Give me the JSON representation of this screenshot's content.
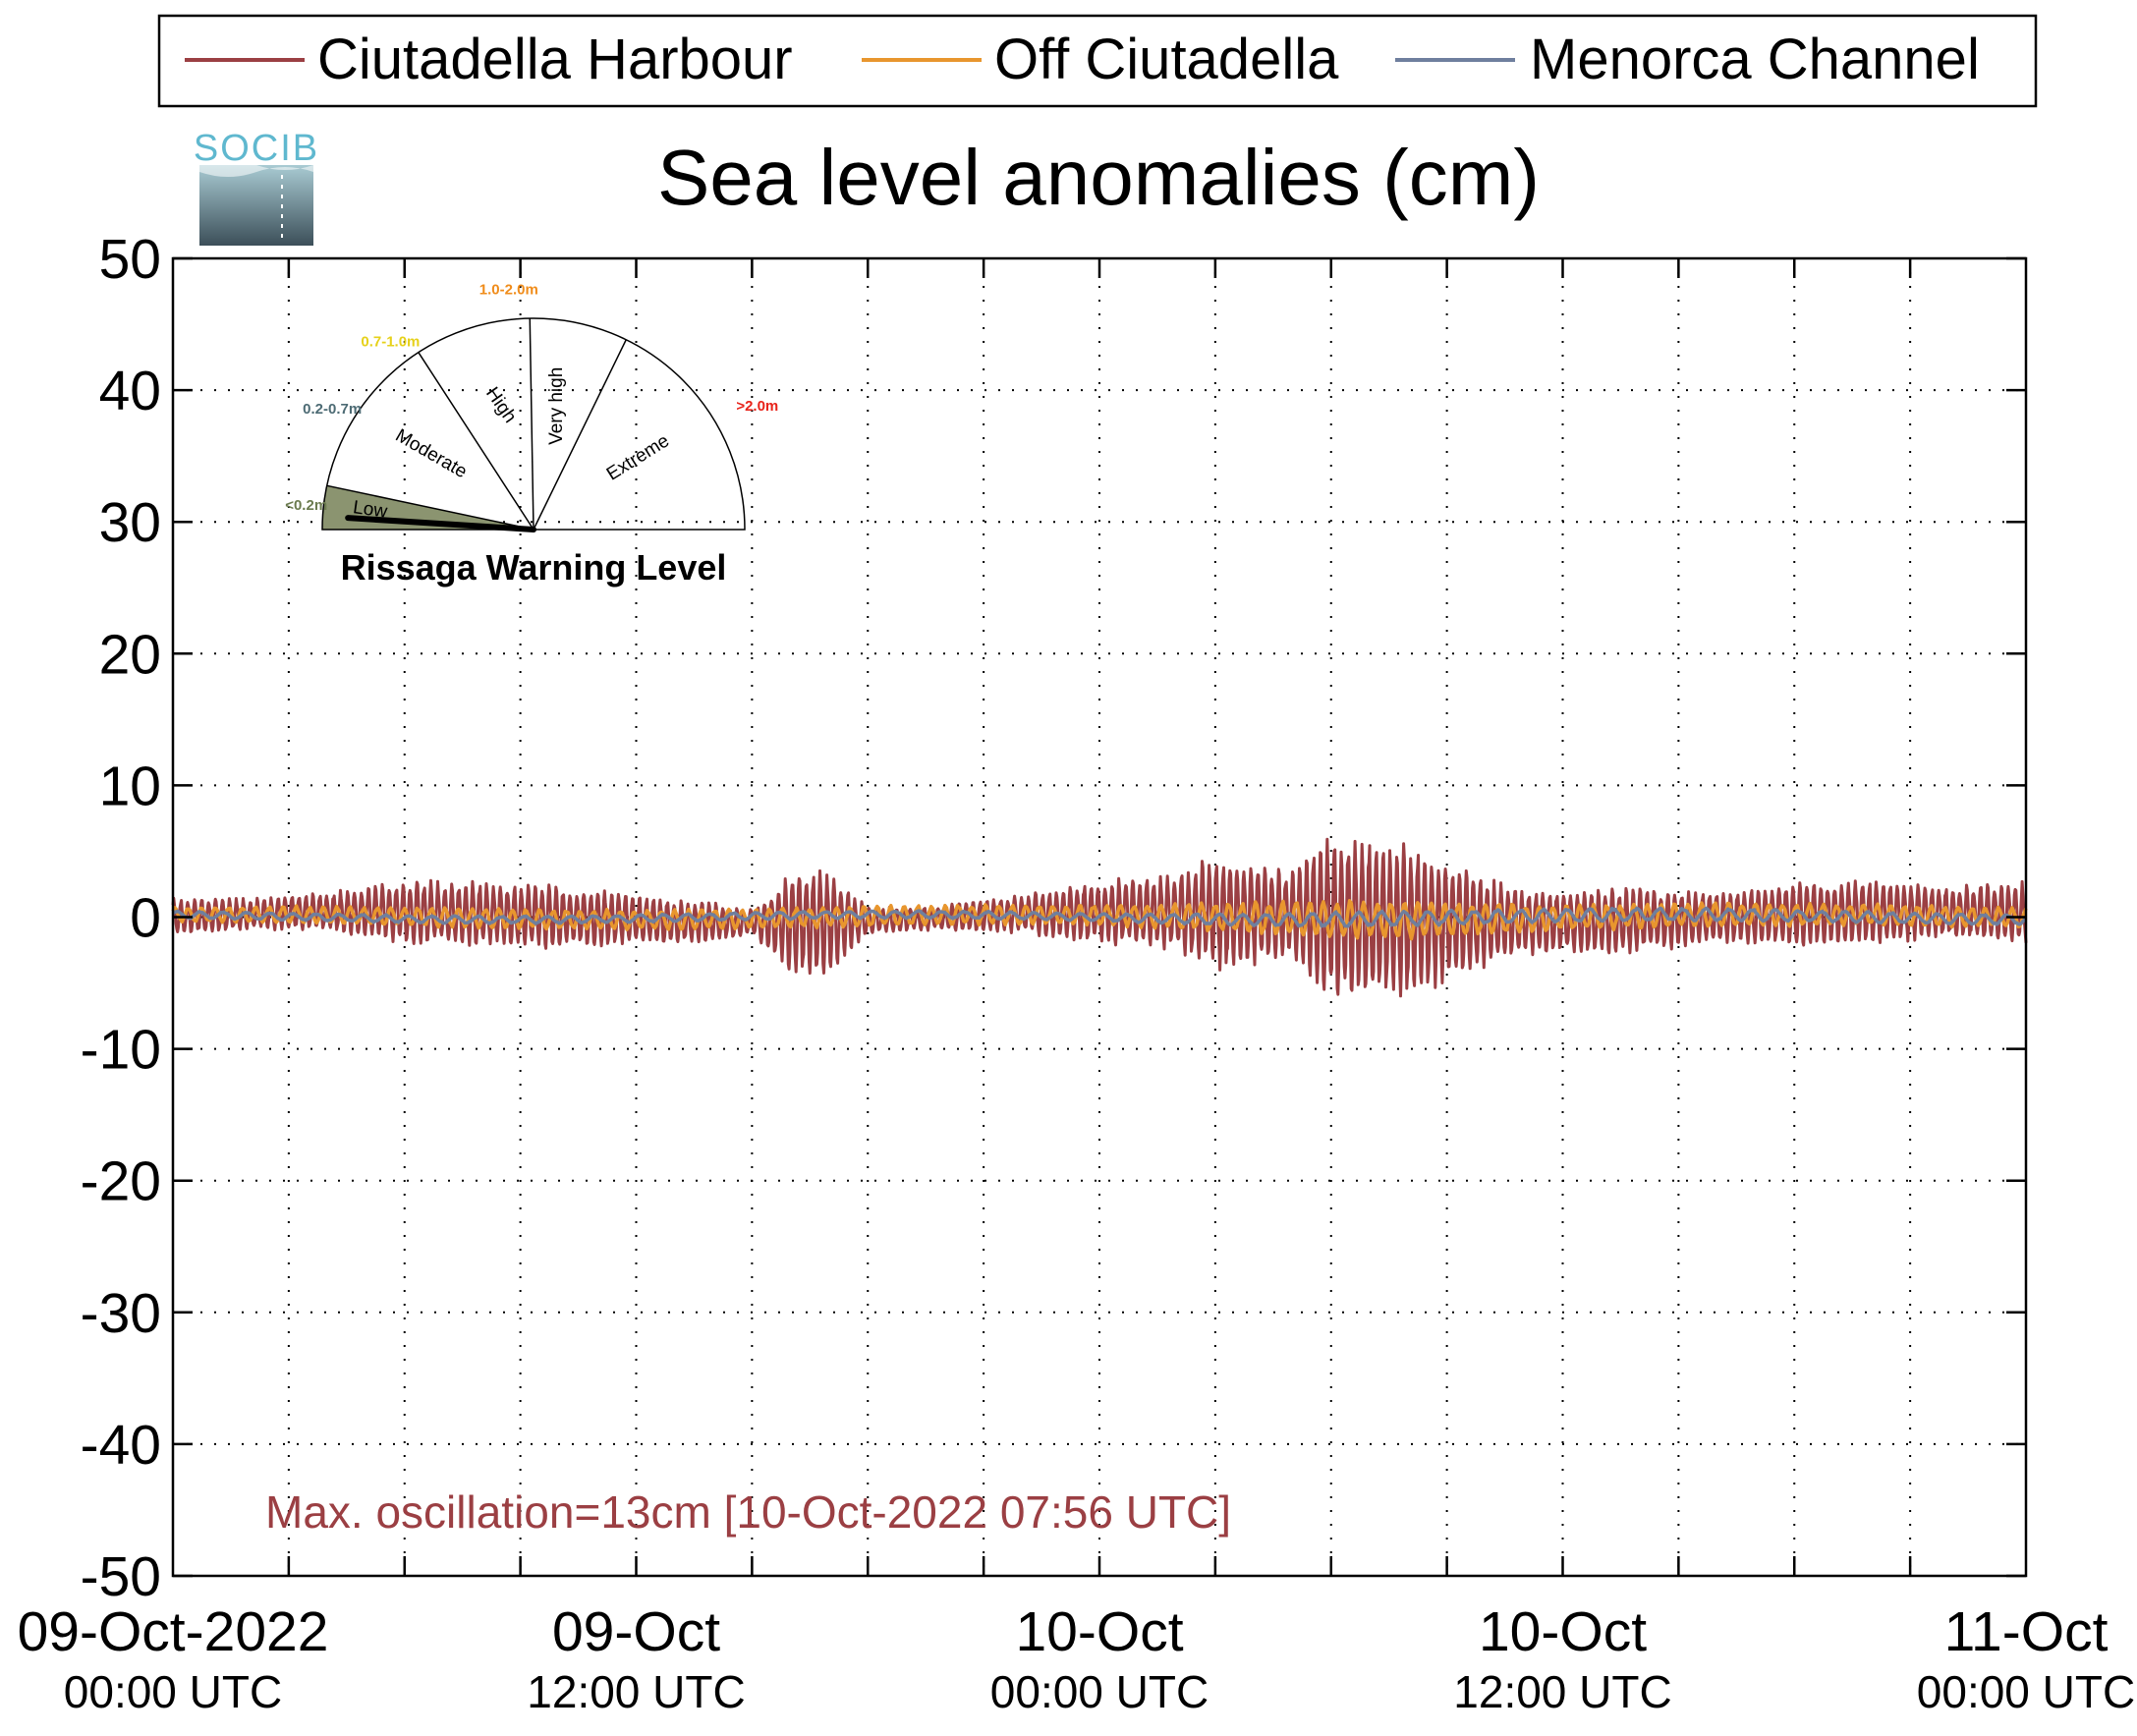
{
  "chart_data": {
    "type": "line",
    "title": "Sea level anomalies (cm)",
    "xlabel": "",
    "ylabel": "",
    "ylim": [
      -50,
      50
    ],
    "yticks": [
      "50",
      "40",
      "30",
      "20",
      "10",
      "0",
      "-10",
      "-20",
      "-30",
      "-40",
      "-50"
    ],
    "xlim_hours": [
      0,
      48
    ],
    "xticks": [
      {
        "line1": "09-Oct-2022",
        "line2": "00:00 UTC"
      },
      {
        "line1": "09-Oct",
        "line2": "12:00 UTC"
      },
      {
        "line1": "10-Oct",
        "line2": "00:00 UTC"
      },
      {
        "line1": "10-Oct",
        "line2": "12:00 UTC"
      },
      {
        "line1": "11-Oct",
        "line2": "00:00 UTC"
      }
    ],
    "grid": true,
    "legend_position": "top",
    "series": [
      {
        "name": "Ciutadella Harbour",
        "color": "#9b3f43",
        "envelope_hours": [
          0,
          2,
          4,
          6,
          8,
          10,
          12,
          14,
          15,
          16,
          17,
          18,
          20,
          22,
          24,
          26,
          27,
          28,
          29,
          30,
          31,
          32,
          33,
          34,
          35,
          36,
          38,
          40,
          42,
          44,
          46,
          48
        ],
        "amplitude_cm": [
          1.5,
          1.2,
          1.5,
          2.5,
          2.5,
          2.5,
          2.0,
          1.5,
          1.0,
          4.0,
          4.0,
          1.0,
          1.0,
          1.5,
          2.5,
          3.0,
          4.5,
          4.0,
          3.5,
          6.5,
          6.5,
          6.0,
          5.0,
          3.5,
          2.5,
          2.5,
          2.5,
          2.0,
          2.5,
          2.5,
          2.0,
          2.5
        ]
      },
      {
        "name": "Off Ciutadella",
        "color": "#e8962e",
        "envelope_hours": [
          0,
          8,
          16,
          24,
          30,
          32,
          36,
          48
        ],
        "amplitude_cm": [
          0.6,
          0.8,
          0.8,
          0.8,
          1.5,
          1.5,
          1.0,
          0.8
        ]
      },
      {
        "name": "Menorca Channel",
        "color": "#6f7f9e",
        "envelope_hours": [
          0,
          24,
          30,
          48
        ],
        "amplitude_cm": [
          0.3,
          0.3,
          0.6,
          0.4
        ]
      }
    ],
    "annotation": "Max. oscillation=13cm [10-Oct-2022 07:56 UTC]"
  },
  "logo": {
    "text": "SOCIB",
    "colors": [
      "#5fb8cf",
      "#3a5a66"
    ]
  },
  "gauge": {
    "title": "Rissaga Warning Level",
    "current_level": 0.1,
    "segments": [
      {
        "label": "Low",
        "range": "<0.2m",
        "range_color": "#6b7b4f"
      },
      {
        "label": "Moderate",
        "range": "0.2-0.7m",
        "range_color": "#4d6b74"
      },
      {
        "label": "High",
        "range": "0.7-1.0m",
        "range_color": "#e6d11a"
      },
      {
        "label": "Very high",
        "range": "1.0-2.0m",
        "range_color": "#f08c1a"
      },
      {
        "label": "Extreme",
        "range": ">2.0m",
        "range_color": "#e8231a"
      }
    ],
    "active_fill": "#8b9470"
  }
}
